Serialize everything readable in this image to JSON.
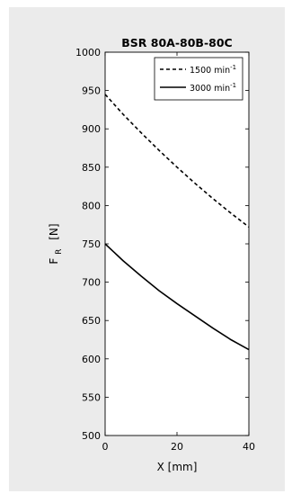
{
  "chart_data": {
    "type": "line",
    "title": "BSR 80A-80B-80C",
    "xlabel": "X [mm]",
    "ylabel": {
      "main": "F",
      "sub": "R",
      "unit": "[N]"
    },
    "xlim": [
      0,
      40
    ],
    "ylim": [
      500,
      1000
    ],
    "x_ticks": [
      0,
      20,
      40
    ],
    "y_ticks": [
      500,
      550,
      600,
      650,
      700,
      750,
      800,
      850,
      900,
      950,
      1000
    ],
    "grid": false,
    "legend_position": "top-right",
    "series": [
      {
        "name": "1500 min",
        "name_superscript": "-1",
        "line_style": "dashed",
        "color": "#000000",
        "x": [
          0,
          5,
          10,
          15,
          20,
          25,
          30,
          35,
          40
        ],
        "y": [
          945,
          919,
          895,
          872,
          850,
          829,
          809,
          790,
          772
        ]
      },
      {
        "name": "3000 min",
        "name_superscript": "-1",
        "line_style": "solid",
        "color": "#000000",
        "x": [
          0,
          5,
          10,
          15,
          20,
          25,
          30,
          35,
          40
        ],
        "y": [
          750,
          728,
          708,
          689,
          672,
          656,
          640,
          625,
          612
        ]
      }
    ]
  },
  "colors": {
    "panel_background": "#ebebeb",
    "plot_background": "#ffffff",
    "axis": "#000000"
  }
}
